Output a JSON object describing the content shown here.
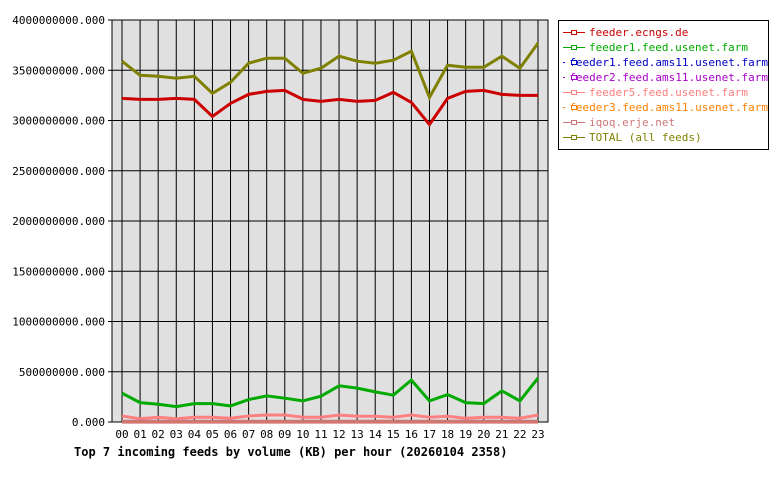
{
  "chart_data": {
    "type": "line",
    "title": "Top 7 incoming feeds by volume (KB) per hour (20260104 2358)",
    "xlabel": "",
    "ylabel": "",
    "categories": [
      "00",
      "01",
      "02",
      "03",
      "04",
      "05",
      "06",
      "07",
      "08",
      "09",
      "10",
      "11",
      "12",
      "13",
      "14",
      "15",
      "16",
      "17",
      "18",
      "19",
      "20",
      "21",
      "22",
      "23"
    ],
    "ylim": [
      0,
      4000000000
    ],
    "yticks": [
      "0.000",
      "500000000.000",
      "1000000000.000",
      "1500000000.000",
      "2000000000.000",
      "2500000000.000",
      "3000000000.000",
      "3500000000.000",
      "4000000000.000"
    ],
    "grid": true,
    "legend_position": "right",
    "series": [
      {
        "name": "feeder.ecngs.de",
        "color": "#cc0000",
        "values": [
          3220000000,
          3210000000,
          3210000000,
          3220000000,
          3210000000,
          3040000000,
          3170000000,
          3260000000,
          3290000000,
          3300000000,
          3210000000,
          3190000000,
          3210000000,
          3190000000,
          3200000000,
          3280000000,
          3180000000,
          2960000000,
          3220000000,
          3290000000,
          3300000000,
          3260000000,
          3250000000,
          3250000000
        ]
      },
      {
        "name": "feeder1.feed.usenet.farm",
        "color": "#00aa00",
        "values": [
          287000000,
          193000000,
          177000000,
          153000000,
          183000000,
          183000000,
          160000000,
          223000000,
          260000000,
          237000000,
          210000000,
          257000000,
          360000000,
          337000000,
          300000000,
          267000000,
          417000000,
          210000000,
          273000000,
          193000000,
          183000000,
          310000000,
          210000000,
          437000000
        ]
      },
      {
        "name": "feeder1.feed.ams11.usenet.farm",
        "color": "#0000cc",
        "values": [
          1000000,
          1000000,
          1000000,
          1000000,
          1000000,
          1000000,
          1000000,
          1000000,
          1000000,
          1000000,
          1000000,
          1000000,
          1000000,
          1000000,
          1000000,
          1000000,
          1000000,
          1000000,
          1000000,
          1000000,
          1000000,
          1000000,
          1000000,
          1000000
        ]
      },
      {
        "name": "feeder2.feed.ams11.usenet.farm",
        "color": "#aa00cc",
        "values": [
          1000000,
          1000000,
          1000000,
          1000000,
          1000000,
          1000000,
          1000000,
          1000000,
          1000000,
          1000000,
          1000000,
          1000000,
          1000000,
          1000000,
          1000000,
          1000000,
          1000000,
          1000000,
          1000000,
          1000000,
          1000000,
          1000000,
          1000000,
          1000000
        ]
      },
      {
        "name": "feeder5.feed.usenet.farm",
        "color": "#ff8080",
        "values": [
          60000000,
          33000000,
          47000000,
          33000000,
          47000000,
          47000000,
          37000000,
          60000000,
          70000000,
          70000000,
          47000000,
          47000000,
          70000000,
          57000000,
          57000000,
          47000000,
          70000000,
          47000000,
          57000000,
          37000000,
          47000000,
          47000000,
          37000000,
          70000000
        ]
      },
      {
        "name": "feeder3.feed.ams11.usenet.farm",
        "color": "#ff8000",
        "values": [
          2000000,
          2000000,
          2000000,
          2000000,
          2000000,
          2000000,
          2000000,
          2000000,
          2000000,
          2000000,
          2000000,
          2000000,
          2000000,
          2000000,
          2000000,
          2000000,
          2000000,
          2000000,
          2000000,
          2000000,
          2000000,
          2000000,
          2000000,
          2000000
        ]
      },
      {
        "name": "iqoq.erje.net",
        "color": "#cc7777",
        "values": [
          7000000,
          7000000,
          7000000,
          7000000,
          7000000,
          7000000,
          7000000,
          7000000,
          7000000,
          7000000,
          7000000,
          7000000,
          7000000,
          7000000,
          7000000,
          7000000,
          7000000,
          7000000,
          7000000,
          7000000,
          7000000,
          7000000,
          7000000,
          7000000
        ]
      },
      {
        "name": "TOTAL (all feeds)",
        "color": "#808000",
        "values": [
          3590000000,
          3450000000,
          3440000000,
          3420000000,
          3440000000,
          3270000000,
          3380000000,
          3570000000,
          3620000000,
          3620000000,
          3470000000,
          3520000000,
          3640000000,
          3590000000,
          3570000000,
          3600000000,
          3690000000,
          3230000000,
          3550000000,
          3530000000,
          3530000000,
          3640000000,
          3520000000,
          3770000000
        ]
      }
    ]
  }
}
